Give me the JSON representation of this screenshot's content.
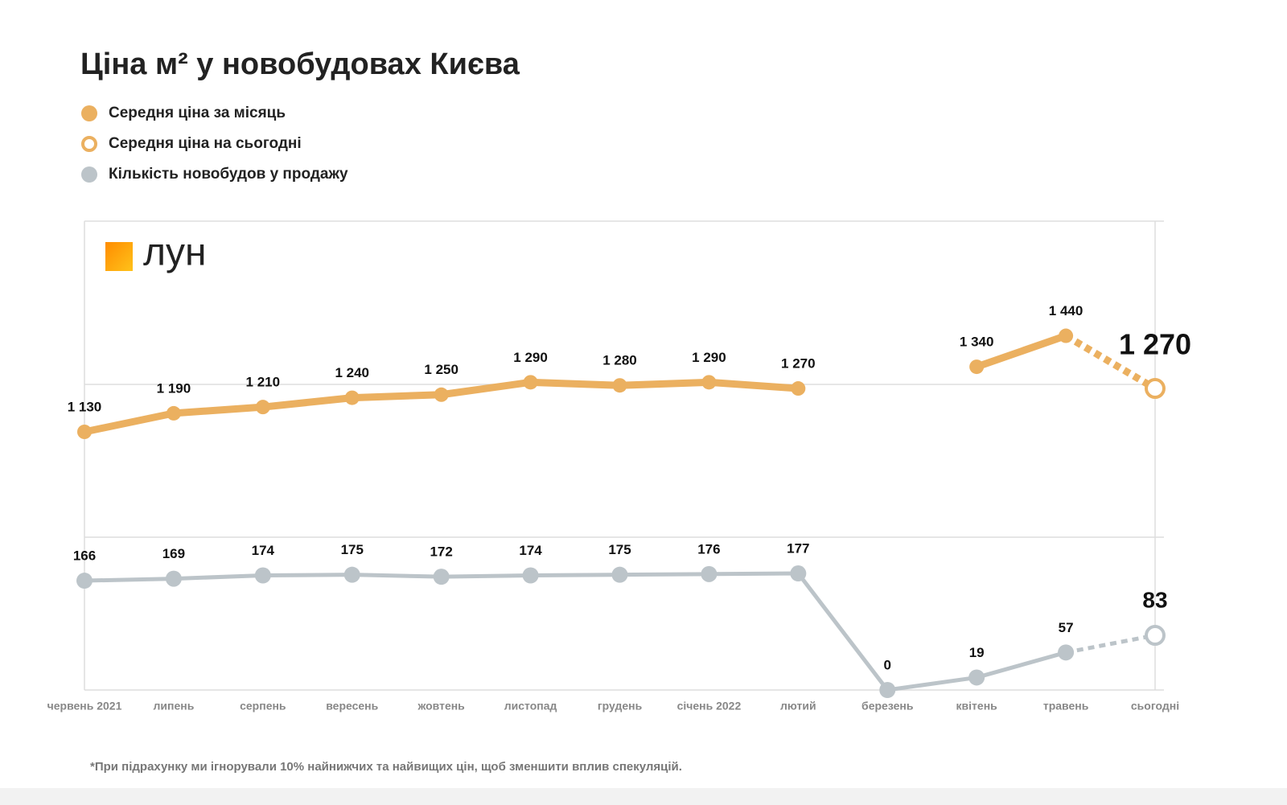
{
  "chart_data": {
    "type": "line",
    "title": "Ціна м² у новобудовах Києва",
    "logo": "лун",
    "footnote": "*При підрахунку ми ігнорували 10% найнижчих та найвищих цін, щоб зменшити вплив спекуляцій.",
    "categories": [
      "червень 2021",
      "липень",
      "серпень",
      "вересень",
      "жовтень",
      "листопад",
      "грудень",
      "січень 2022",
      "лютий",
      "березень",
      "квітень",
      "травень",
      "сьогодні"
    ],
    "series": [
      {
        "name": "Середня ціна за місяць",
        "color": "#ebb060",
        "hollow": false,
        "values": [
          1130,
          1190,
          1210,
          1240,
          1250,
          1290,
          1280,
          1290,
          1270,
          null,
          1340,
          1440,
          null
        ],
        "value_labels": [
          "1 130",
          "1 190",
          "1 210",
          "1 240",
          "1 250",
          "1 290",
          "1 280",
          "1 290",
          "1 270",
          null,
          "1 340",
          "1 440",
          null
        ]
      },
      {
        "name": "Середня ціна на сьогодні",
        "color": "#ebb060",
        "hollow": true,
        "values": [
          null,
          null,
          null,
          null,
          null,
          null,
          null,
          null,
          null,
          null,
          null,
          null,
          1270
        ],
        "value_labels": [
          null,
          null,
          null,
          null,
          null,
          null,
          null,
          null,
          null,
          null,
          null,
          null,
          "1 270"
        ]
      },
      {
        "name": "Кількість новобудов у продажу",
        "color": "#bcc4c9",
        "hollow": false,
        "axis": "y2",
        "dashed_last": true,
        "values": [
          166,
          169,
          174,
          175,
          172,
          174,
          175,
          176,
          177,
          0,
          19,
          57,
          83
        ]
      }
    ],
    "ylim": [
      790,
      1810
    ],
    "y2lim": [
      0,
      232
    ]
  }
}
